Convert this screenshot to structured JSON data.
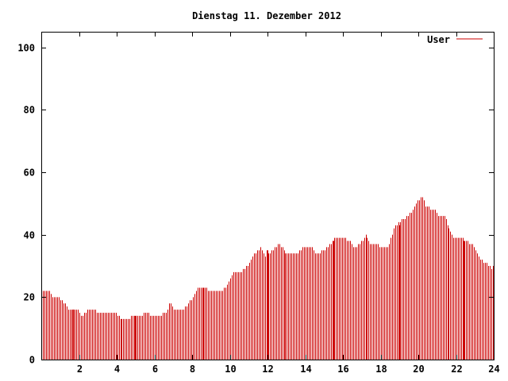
{
  "chart_data": {
    "type": "bar",
    "title": "Dienstag 11. Dezember 2012",
    "xlabel": "",
    "ylabel": "",
    "xlim": [
      0,
      24
    ],
    "ylim": [
      0,
      105
    ],
    "x_ticks": [
      2,
      4,
      6,
      8,
      10,
      12,
      14,
      16,
      18,
      20,
      22,
      24
    ],
    "y_ticks": [
      0,
      20,
      40,
      60,
      80,
      100
    ],
    "legend_position": "top-right",
    "grid": false,
    "series": [
      {
        "name": "User",
        "color": "#cc0000",
        "anchors": [
          [
            0.0,
            22
          ],
          [
            0.4,
            22
          ],
          [
            0.6,
            20
          ],
          [
            0.9,
            20
          ],
          [
            1.2,
            18
          ],
          [
            1.5,
            16
          ],
          [
            1.9,
            16
          ],
          [
            2.1,
            14
          ],
          [
            2.3,
            15
          ],
          [
            2.5,
            16
          ],
          [
            2.8,
            16
          ],
          [
            3.0,
            15
          ],
          [
            3.5,
            15
          ],
          [
            3.9,
            15
          ],
          [
            4.2,
            13
          ],
          [
            4.6,
            13
          ],
          [
            4.9,
            14
          ],
          [
            5.2,
            14
          ],
          [
            5.6,
            15
          ],
          [
            5.8,
            14
          ],
          [
            6.2,
            14
          ],
          [
            6.6,
            15
          ],
          [
            6.8,
            18
          ],
          [
            7.1,
            16
          ],
          [
            7.5,
            16
          ],
          [
            7.8,
            18
          ],
          [
            8.0,
            20
          ],
          [
            8.3,
            23
          ],
          [
            8.6,
            23
          ],
          [
            9.0,
            22
          ],
          [
            9.3,
            22
          ],
          [
            9.6,
            22
          ],
          [
            9.9,
            24
          ],
          [
            10.2,
            28
          ],
          [
            10.6,
            28
          ],
          [
            10.9,
            30
          ],
          [
            11.2,
            33
          ],
          [
            11.6,
            36
          ],
          [
            11.9,
            33
          ],
          [
            12.2,
            35
          ],
          [
            12.6,
            37
          ],
          [
            13.0,
            34
          ],
          [
            13.6,
            34
          ],
          [
            13.9,
            36
          ],
          [
            14.3,
            36
          ],
          [
            14.6,
            34
          ],
          [
            15.0,
            35
          ],
          [
            15.3,
            37
          ],
          [
            15.6,
            39
          ],
          [
            16.0,
            39
          ],
          [
            16.3,
            38
          ],
          [
            16.6,
            36
          ],
          [
            16.9,
            37
          ],
          [
            17.2,
            40
          ],
          [
            17.5,
            37
          ],
          [
            17.8,
            37
          ],
          [
            18.0,
            36
          ],
          [
            18.4,
            36
          ],
          [
            18.7,
            42
          ],
          [
            19.0,
            44
          ],
          [
            19.4,
            46
          ],
          [
            19.7,
            48
          ],
          [
            20.0,
            51
          ],
          [
            20.2,
            52
          ],
          [
            20.4,
            49
          ],
          [
            20.8,
            48
          ],
          [
            21.1,
            46
          ],
          [
            21.4,
            46
          ],
          [
            21.6,
            42
          ],
          [
            21.9,
            39
          ],
          [
            22.3,
            39
          ],
          [
            22.6,
            38
          ],
          [
            23.0,
            36
          ],
          [
            23.3,
            32
          ],
          [
            23.6,
            31
          ],
          [
            23.9,
            29
          ],
          [
            24.0,
            30
          ]
        ],
        "spikes": [
          [
            1.7,
            16
          ],
          [
            5.0,
            14
          ],
          [
            8.6,
            23
          ],
          [
            12.0,
            35
          ],
          [
            15.5,
            38
          ],
          [
            19.0,
            43
          ],
          [
            22.4,
            38
          ]
        ]
      }
    ]
  }
}
